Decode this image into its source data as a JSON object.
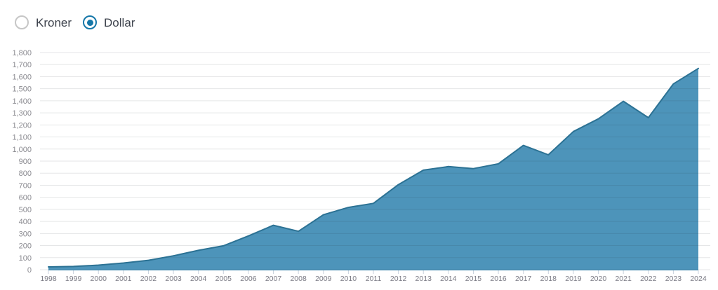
{
  "controls": {
    "currency_options": [
      {
        "label": "Kroner",
        "selected": false
      },
      {
        "label": "Dollar",
        "selected": true
      }
    ]
  },
  "colors": {
    "area_fill": "#4d94ba",
    "line_stroke": "#2c7294",
    "grid_overlay": "rgba(40,50,60,0.12)",
    "tick_mark": "#c9d2dd",
    "y_label_color": "#8a8a90",
    "x_label_color": "#7a7a84",
    "radio_selected": "#1577a8",
    "radio_unselected_border": "#c6c6c6"
  },
  "chart_data": {
    "type": "area",
    "categories": [
      "1998",
      "1999",
      "2000",
      "2001",
      "2002",
      "2003",
      "2004",
      "2005",
      "2006",
      "2007",
      "2008",
      "2009",
      "2010",
      "2011",
      "2012",
      "2013",
      "2014",
      "2015",
      "2016",
      "2017",
      "2018",
      "2019",
      "2020",
      "2021",
      "2022",
      "2023",
      "2024"
    ],
    "values": [
      23,
      27,
      38,
      55,
      78,
      115,
      160,
      198,
      280,
      368,
      318,
      455,
      516,
      550,
      705,
      825,
      855,
      838,
      878,
      1030,
      952,
      1145,
      1250,
      1396,
      1260,
      1540,
      1668
    ],
    "ylim": [
      0,
      1800
    ],
    "y_tick_step": 100,
    "y_tick_labels": [
      "0",
      "100",
      "200",
      "300",
      "400",
      "500",
      "600",
      "700",
      "800",
      "900",
      "1,000",
      "1,100",
      "1,200",
      "1,300",
      "1,400",
      "1,500",
      "1,600",
      "1,700",
      "1,800"
    ],
    "grid": true,
    "legend": "none",
    "title": "",
    "xlabel": "",
    "ylabel": ""
  }
}
